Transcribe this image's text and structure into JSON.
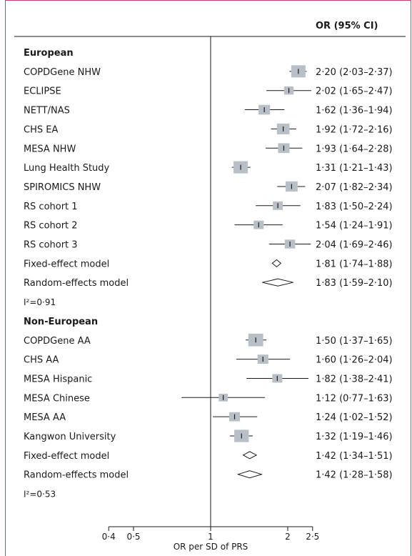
{
  "chart_data": {
    "type": "forest",
    "header": "OR (95% CI)",
    "xlabel": "OR per SD of PRS",
    "xscale": "log",
    "xticks": [
      "0·4",
      "0·5",
      "1",
      "2",
      "2·5"
    ],
    "xtick_values": [
      0.4,
      0.5,
      1,
      2,
      2.5
    ],
    "reference_line": 1,
    "groups": [
      {
        "name": "European",
        "studies": [
          {
            "label": "COPDGene NHW",
            "or": 2.2,
            "lo": 2.03,
            "hi": 2.37,
            "ci_text": "2·20 (2·03–2·37)",
            "weight": 1.0
          },
          {
            "label": "ECLIPSE",
            "or": 2.02,
            "lo": 1.65,
            "hi": 2.47,
            "ci_text": "2·02 (1·65–2·47)",
            "weight": 0.2
          },
          {
            "label": "NETT/NAS",
            "or": 1.62,
            "lo": 1.36,
            "hi": 1.94,
            "ci_text": "1·62 (1·36–1·94)",
            "weight": 0.45
          },
          {
            "label": "CHS EA",
            "or": 1.92,
            "lo": 1.72,
            "hi": 2.16,
            "ci_text": "1·92 (1·72–2·16)",
            "weight": 0.65
          },
          {
            "label": "MESA NHW",
            "or": 1.93,
            "lo": 1.64,
            "hi": 2.28,
            "ci_text": "1·93 (1·64–2·28)",
            "weight": 0.45
          },
          {
            "label": "Lung Health Study",
            "or": 1.31,
            "lo": 1.21,
            "hi": 1.43,
            "ci_text": "1·31 (1·21–1·43)",
            "weight": 1.0
          },
          {
            "label": "SPIROMICS NHW",
            "or": 2.07,
            "lo": 1.82,
            "hi": 2.34,
            "ci_text": "2·07 (1·82–2·34)",
            "weight": 0.55
          },
          {
            "label": "RS cohort 1",
            "or": 1.83,
            "lo": 1.5,
            "hi": 2.24,
            "ci_text": "1·83 (1·50–2·24)",
            "weight": 0.25
          },
          {
            "label": "RS cohort 2",
            "or": 1.54,
            "lo": 1.24,
            "hi": 1.91,
            "ci_text": "1·54 (1·24–1·91)",
            "weight": 0.25
          },
          {
            "label": "RS cohort 3",
            "or": 2.04,
            "lo": 1.69,
            "hi": 2.46,
            "ci_text": "2·04 (1·69–2·46)",
            "weight": 0.3
          }
        ],
        "fixed": {
          "label": "Fixed-effect model",
          "or": 1.81,
          "lo": 1.74,
          "hi": 1.88,
          "ci_text": "1·81 (1·74–1·88)"
        },
        "random": {
          "label": "Random-effects model",
          "or": 1.83,
          "lo": 1.59,
          "hi": 2.1,
          "ci_text": "1·83 (1·59–2·10)"
        },
        "heterogeneity": "I²=0·91"
      },
      {
        "name": "Non-European",
        "studies": [
          {
            "label": "COPDGene AA",
            "or": 1.5,
            "lo": 1.37,
            "hi": 1.65,
            "ci_text": "1·50 (1·37–1·65)",
            "weight": 1.15
          },
          {
            "label": "CHS AA",
            "or": 1.6,
            "lo": 1.26,
            "hi": 2.04,
            "ci_text": "1·60 (1·26–2·04)",
            "weight": 0.35
          },
          {
            "label": "MESA Hispanic",
            "or": 1.82,
            "lo": 1.38,
            "hi": 2.41,
            "ci_text": "1·82 (1·38–2·41)",
            "weight": 0.25
          },
          {
            "label": "MESA Chinese",
            "or": 1.12,
            "lo": 0.77,
            "hi": 1.63,
            "ci_text": "1·12 (0·77–1·63)",
            "weight": 0.15
          },
          {
            "label": "MESA AA",
            "or": 1.24,
            "lo": 1.02,
            "hi": 1.52,
            "ci_text": "1·24 (1·02–1·52)",
            "weight": 0.35
          },
          {
            "label": "Kangwon University",
            "or": 1.32,
            "lo": 1.19,
            "hi": 1.46,
            "ci_text": "1·32 (1·19–1·46)",
            "weight": 1.05
          }
        ],
        "fixed": {
          "label": "Fixed-effect model",
          "or": 1.42,
          "lo": 1.34,
          "hi": 1.51,
          "ci_text": "1·42 (1·34–1·51)"
        },
        "random": {
          "label": "Random-effects model",
          "or": 1.42,
          "lo": 1.28,
          "hi": 1.58,
          "ci_text": "1·42 (1·28–1·58)"
        },
        "heterogeneity": "I²=0·53"
      }
    ],
    "colors": {
      "square": "#b8bfc7",
      "line": "#1a1a1a",
      "border": "#c7426b"
    }
  }
}
